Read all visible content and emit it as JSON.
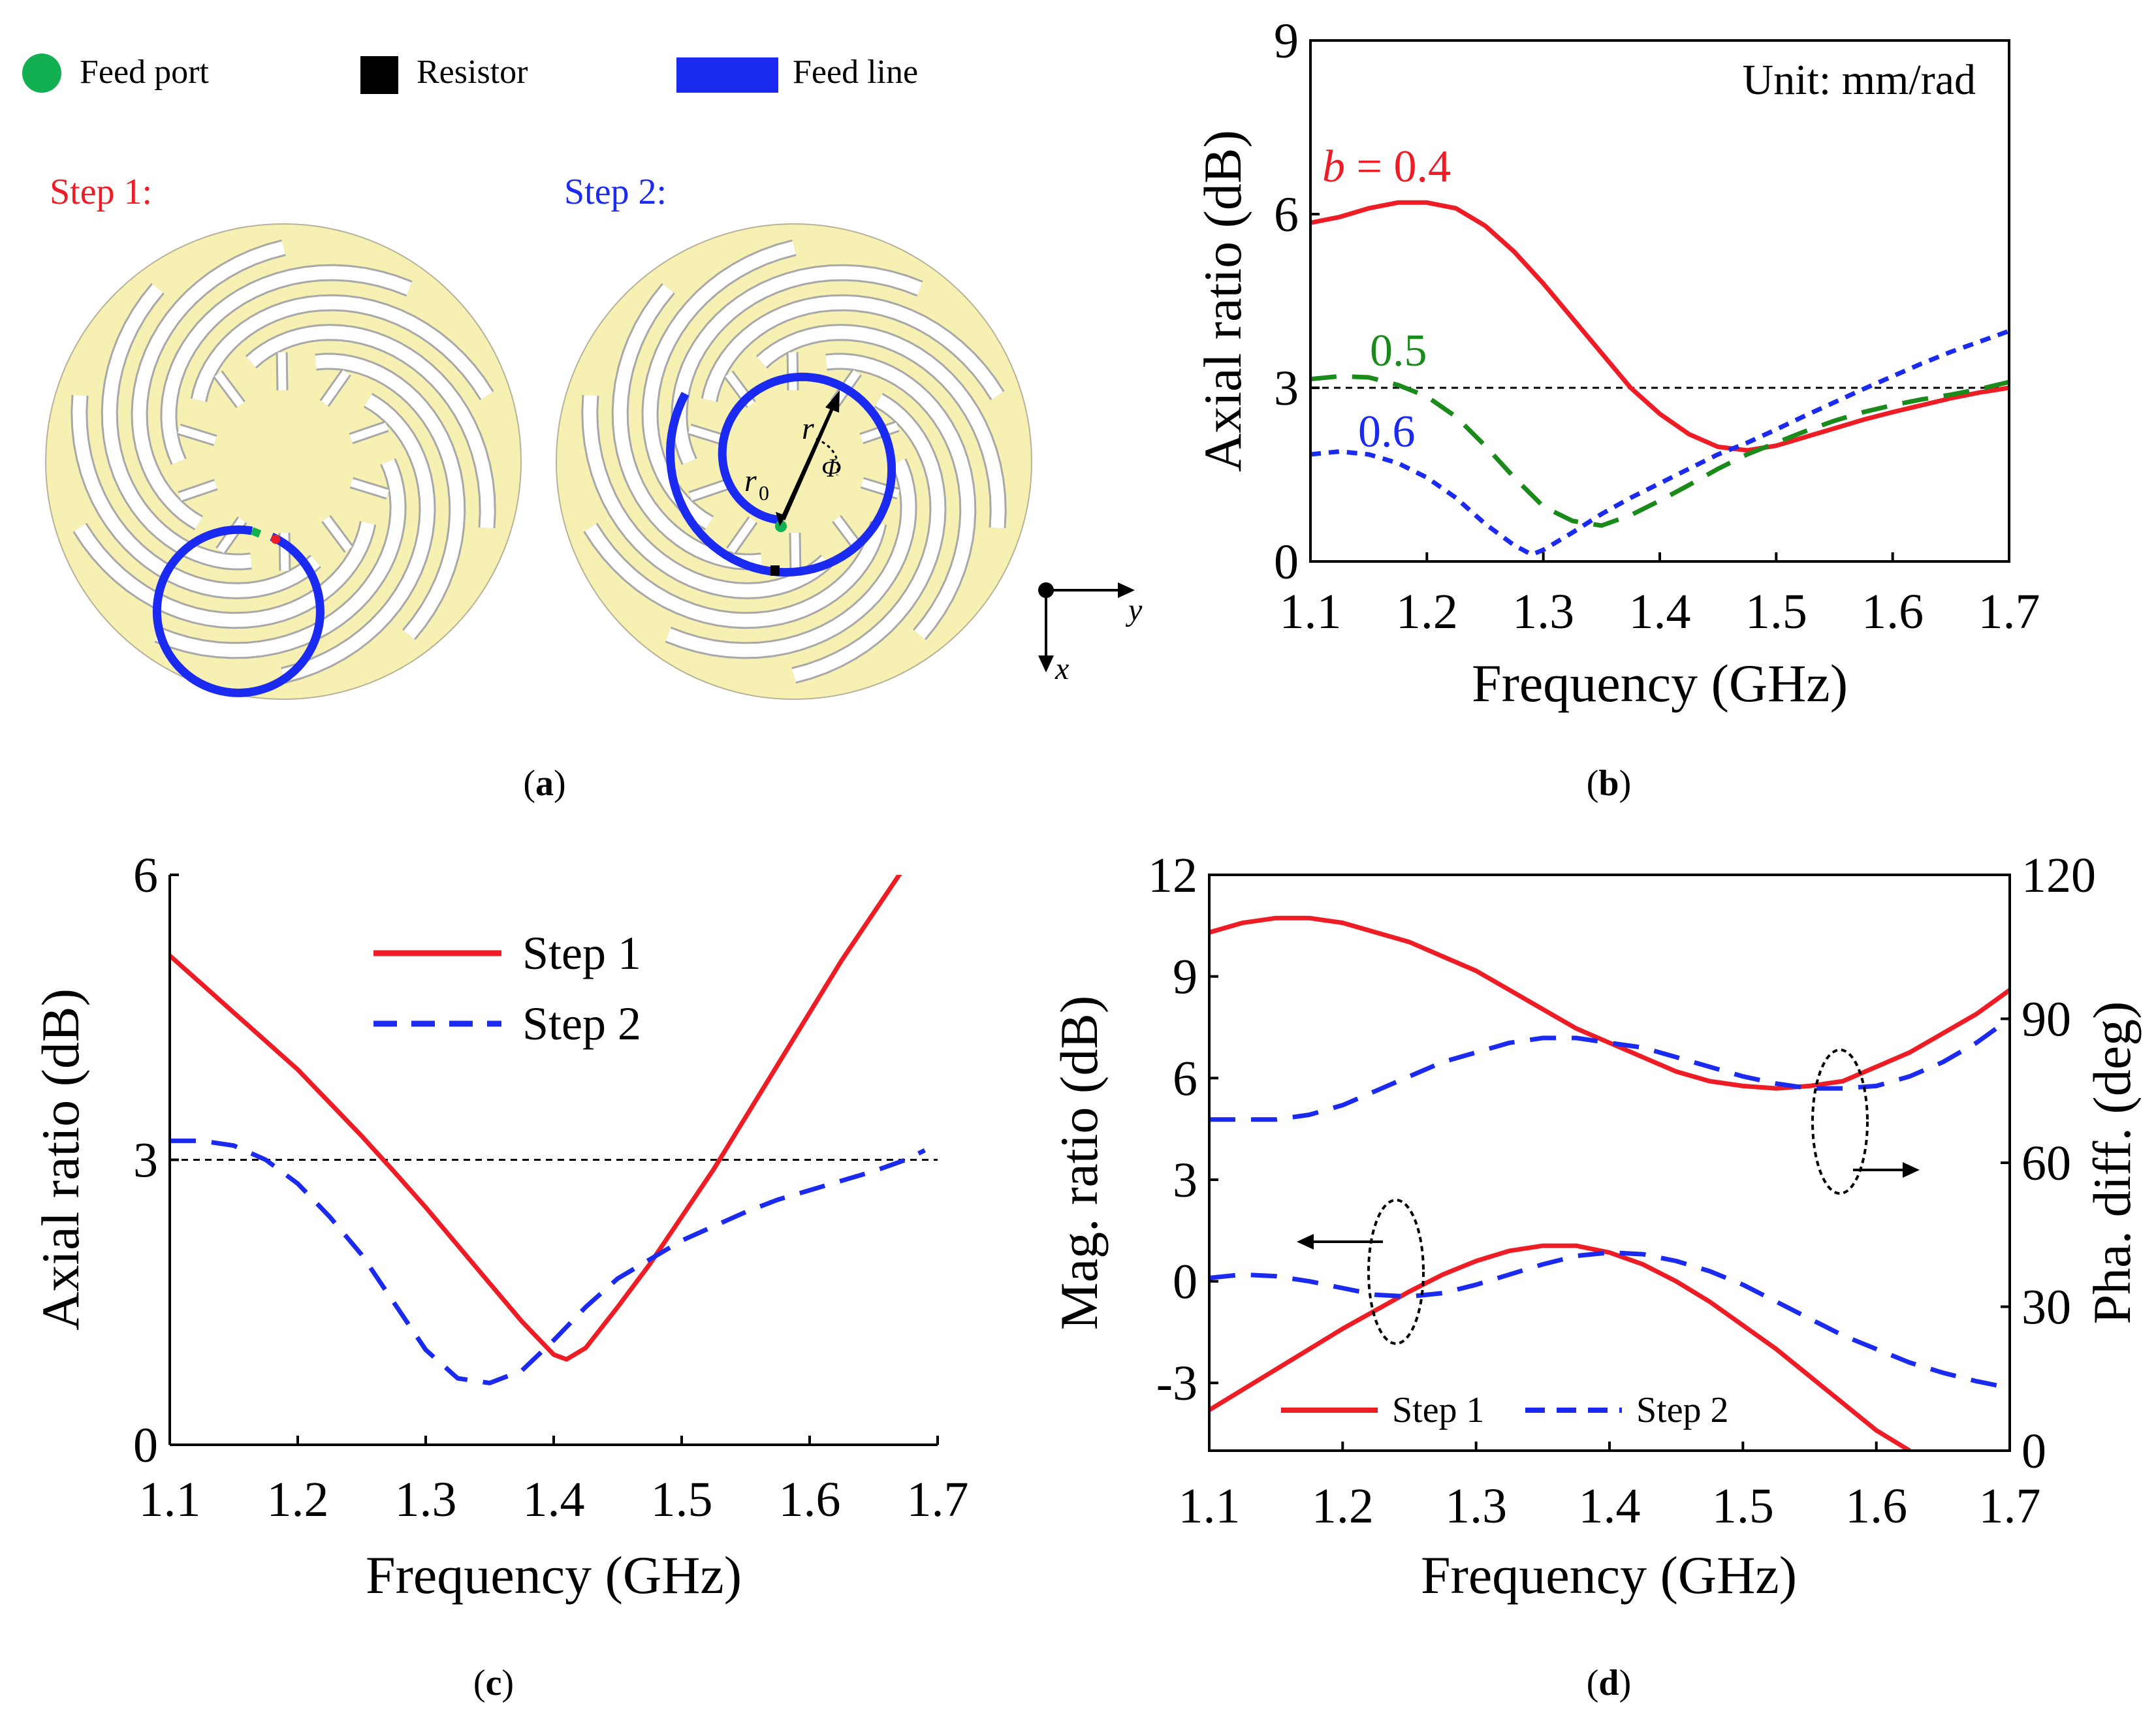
{
  "colors": {
    "red": "#ee1c25",
    "blue": "#1b2af0",
    "green": "#1a8a1a",
    "feed_port": "#12b050",
    "pcb": "#f6f0b2",
    "slot": "#ffffff"
  },
  "panel_a": {
    "legend": {
      "feed_port": "Feed port",
      "resistor": "Resistor",
      "feed_line": "Feed line"
    },
    "step1_label": "Step 1:",
    "step2_label": "Step 2:",
    "annot": {
      "r": "r",
      "r0": "r",
      "r0_sub": "0",
      "phi": "Φ"
    },
    "axes": {
      "y": "y",
      "x": "x"
    },
    "caption": "a"
  },
  "chart_data": [
    {
      "id": "b",
      "type": "line",
      "caption": "b",
      "xlabel": "Frequency (GHz)",
      "ylabel": "Axial ratio (dB)",
      "xlim": [
        1.1,
        1.7
      ],
      "ylim": [
        0,
        9
      ],
      "xticks": [
        "1.1",
        "1.2",
        "1.3",
        "1.4",
        "1.5",
        "1.6",
        "1.7"
      ],
      "yticks": [
        "0",
        "3",
        "6",
        "9"
      ],
      "reference_line": 3,
      "annotation": "Unit: mm/rad",
      "labels": {
        "b04_italic": "b",
        "b04": " = 0.4",
        "b05": "0.5",
        "b06": "0.6"
      },
      "series": [
        {
          "name": "b = 0.4",
          "style": "solid",
          "color": "red",
          "x": [
            1.1,
            1.125,
            1.15,
            1.175,
            1.2,
            1.225,
            1.25,
            1.275,
            1.3,
            1.325,
            1.35,
            1.375,
            1.4,
            1.425,
            1.45,
            1.475,
            1.5,
            1.525,
            1.55,
            1.575,
            1.6,
            1.625,
            1.65,
            1.675,
            1.7
          ],
          "y": [
            5.85,
            5.95,
            6.1,
            6.2,
            6.2,
            6.1,
            5.8,
            5.35,
            4.8,
            4.2,
            3.6,
            3.0,
            2.55,
            2.2,
            1.98,
            1.92,
            2.0,
            2.15,
            2.3,
            2.45,
            2.58,
            2.7,
            2.82,
            2.92,
            3.0
          ]
        },
        {
          "name": "b = 0.5",
          "style": "dashed",
          "color": "green",
          "x": [
            1.1,
            1.125,
            1.15,
            1.175,
            1.2,
            1.225,
            1.25,
            1.275,
            1.3,
            1.325,
            1.35,
            1.375,
            1.4,
            1.425,
            1.45,
            1.475,
            1.5,
            1.525,
            1.55,
            1.575,
            1.6,
            1.625,
            1.65,
            1.675,
            1.7
          ],
          "y": [
            3.15,
            3.2,
            3.18,
            3.05,
            2.85,
            2.5,
            2.0,
            1.45,
            0.95,
            0.7,
            0.62,
            0.8,
            1.05,
            1.32,
            1.6,
            1.85,
            2.05,
            2.25,
            2.43,
            2.58,
            2.7,
            2.8,
            2.88,
            2.98,
            3.1
          ]
        },
        {
          "name": "b = 0.6",
          "style": "dotted",
          "color": "blue",
          "x": [
            1.1,
            1.125,
            1.15,
            1.175,
            1.2,
            1.225,
            1.25,
            1.275,
            1.29,
            1.3,
            1.325,
            1.35,
            1.375,
            1.4,
            1.425,
            1.45,
            1.475,
            1.5,
            1.525,
            1.55,
            1.575,
            1.6,
            1.625,
            1.65,
            1.675,
            1.7
          ],
          "y": [
            1.85,
            1.9,
            1.85,
            1.7,
            1.45,
            1.1,
            0.65,
            0.28,
            0.12,
            0.2,
            0.5,
            0.82,
            1.1,
            1.35,
            1.6,
            1.85,
            2.05,
            2.28,
            2.52,
            2.75,
            2.98,
            3.2,
            3.42,
            3.62,
            3.8,
            3.98
          ]
        }
      ]
    },
    {
      "id": "c",
      "type": "line",
      "caption": "c",
      "xlabel": "Frequency (GHz)",
      "ylabel": "Axial ratio (dB)",
      "xlim": [
        1.1,
        1.7
      ],
      "ylim": [
        0,
        6
      ],
      "xticks": [
        "1.1",
        "1.2",
        "1.3",
        "1.4",
        "1.5",
        "1.6",
        "1.7"
      ],
      "yticks": [
        "0",
        "3",
        "6"
      ],
      "reference_line": 3,
      "legend": [
        "Step 1",
        "Step 2"
      ],
      "series": [
        {
          "name": "Step 1",
          "style": "solid",
          "color": "red",
          "x": [
            1.1,
            1.125,
            1.15,
            1.175,
            1.2,
            1.225,
            1.25,
            1.275,
            1.3,
            1.325,
            1.35,
            1.375,
            1.4,
            1.41,
            1.425,
            1.45,
            1.475,
            1.5,
            1.525,
            1.55,
            1.575,
            1.6,
            1.625,
            1.65,
            1.675
          ],
          "y": [
            5.15,
            4.85,
            4.55,
            4.25,
            3.95,
            3.6,
            3.25,
            2.88,
            2.5,
            2.1,
            1.7,
            1.3,
            0.95,
            0.9,
            1.02,
            1.45,
            1.9,
            2.4,
            2.9,
            3.45,
            4.0,
            4.55,
            5.1,
            5.6,
            6.1
          ]
        },
        {
          "name": "Step 2",
          "style": "dashed",
          "color": "blue",
          "x": [
            1.1,
            1.125,
            1.15,
            1.175,
            1.2,
            1.225,
            1.25,
            1.275,
            1.3,
            1.325,
            1.35,
            1.375,
            1.4,
            1.425,
            1.45,
            1.475,
            1.5,
            1.525,
            1.55,
            1.575,
            1.6,
            1.625,
            1.65,
            1.675,
            1.69
          ],
          "y": [
            3.2,
            3.2,
            3.15,
            3.0,
            2.75,
            2.4,
            2.0,
            1.5,
            1.0,
            0.7,
            0.65,
            0.78,
            1.1,
            1.45,
            1.75,
            1.95,
            2.15,
            2.3,
            2.45,
            2.58,
            2.68,
            2.78,
            2.88,
            3.0,
            3.1
          ]
        }
      ]
    },
    {
      "id": "d",
      "type": "line",
      "caption": "d",
      "xlabel": "Frequency (GHz)",
      "ylabel_left": "Mag. ratio (dB)",
      "ylabel_right": "Pha. diff. (deg)",
      "xlim": [
        1.1,
        1.7
      ],
      "ylim_left": [
        -5,
        12
      ],
      "ylim_right": [
        0,
        120
      ],
      "xticks": [
        "1.1",
        "1.2",
        "1.3",
        "1.4",
        "1.5",
        "1.6",
        "1.7"
      ],
      "yticks_left": [
        "-3",
        "0",
        "3",
        "6",
        "9",
        "12"
      ],
      "yticks_right": [
        "0",
        "30",
        "60",
        "90",
        "120"
      ],
      "legend": [
        "Step 1",
        "Step 2"
      ],
      "series": [
        {
          "name": "Step 1 phase diff",
          "axis": "right",
          "style": "solid",
          "color": "red",
          "x": [
            1.1,
            1.125,
            1.15,
            1.175,
            1.2,
            1.225,
            1.25,
            1.275,
            1.3,
            1.325,
            1.35,
            1.375,
            1.4,
            1.425,
            1.45,
            1.475,
            1.5,
            1.525,
            1.55,
            1.575,
            1.6,
            1.625,
            1.65,
            1.675,
            1.7
          ],
          "y": [
            108,
            110,
            111,
            111,
            110,
            108,
            106,
            103,
            100,
            96,
            92,
            88,
            85,
            82,
            79,
            77,
            76,
            75.5,
            76,
            77,
            80,
            83,
            87,
            91,
            96
          ]
        },
        {
          "name": "Step 2 phase diff",
          "axis": "right",
          "style": "dashed",
          "color": "blue",
          "x": [
            1.1,
            1.125,
            1.15,
            1.175,
            1.2,
            1.225,
            1.25,
            1.275,
            1.3,
            1.325,
            1.35,
            1.375,
            1.4,
            1.425,
            1.45,
            1.475,
            1.5,
            1.525,
            1.55,
            1.575,
            1.6,
            1.625,
            1.65,
            1.675,
            1.7
          ],
          "y": [
            69,
            69,
            69,
            70,
            72,
            75,
            78,
            81,
            83,
            85,
            86,
            86,
            85,
            84,
            82,
            80,
            78,
            76.5,
            75.5,
            75.5,
            76,
            78,
            81,
            85,
            90
          ]
        },
        {
          "name": "Step 1 mag ratio",
          "axis": "left",
          "style": "solid",
          "color": "red",
          "x": [
            1.1,
            1.125,
            1.15,
            1.175,
            1.2,
            1.225,
            1.25,
            1.275,
            1.3,
            1.325,
            1.35,
            1.375,
            1.4,
            1.425,
            1.45,
            1.475,
            1.5,
            1.525,
            1.55,
            1.575,
            1.6,
            1.625
          ],
          "y": [
            -3.8,
            -3.2,
            -2.6,
            -2.0,
            -1.4,
            -0.85,
            -0.3,
            0.2,
            0.6,
            0.9,
            1.05,
            1.05,
            0.85,
            0.5,
            0.0,
            -0.6,
            -1.3,
            -2.0,
            -2.8,
            -3.6,
            -4.4,
            -5.0
          ]
        },
        {
          "name": "Step 2 mag ratio",
          "axis": "left",
          "style": "dashed",
          "color": "blue",
          "x": [
            1.1,
            1.125,
            1.15,
            1.175,
            1.2,
            1.225,
            1.25,
            1.275,
            1.3,
            1.325,
            1.35,
            1.375,
            1.4,
            1.425,
            1.45,
            1.475,
            1.5,
            1.525,
            1.55,
            1.575,
            1.6,
            1.625,
            1.65,
            1.675,
            1.7
          ],
          "y": [
            0.1,
            0.2,
            0.15,
            0.0,
            -0.2,
            -0.4,
            -0.45,
            -0.35,
            -0.1,
            0.2,
            0.5,
            0.75,
            0.85,
            0.8,
            0.6,
            0.3,
            -0.1,
            -0.6,
            -1.1,
            -1.6,
            -2.0,
            -2.4,
            -2.7,
            -2.95,
            -3.15
          ]
        }
      ]
    }
  ]
}
